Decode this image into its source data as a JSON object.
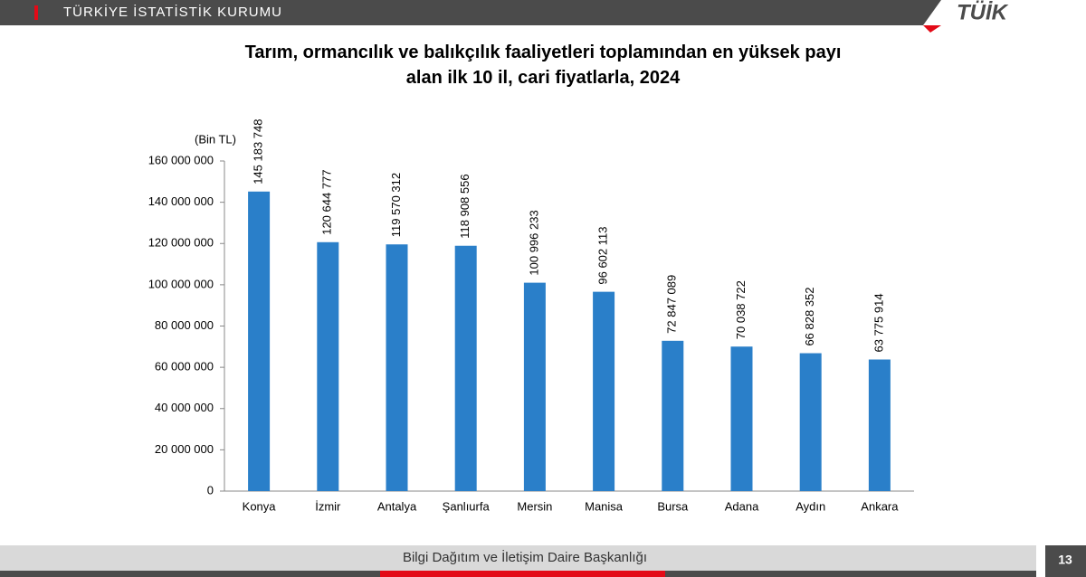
{
  "header": {
    "title": "TÜRKİYE İSTATİSTİK KURUMU",
    "logo": "TÜİK"
  },
  "footer": {
    "text": "Bilgi Dağıtım ve İletişim Daire Başkanlığı",
    "page": "13"
  },
  "chart_data": {
    "type": "bar",
    "title": "Tarım, ormancılık ve balıkçılık faaliyetleri toplamından en yüksek payı alan ilk 10 il, cari fiyatlarla, 2024",
    "y_label": "(Bin TL)",
    "categories": [
      "Konya",
      "İzmir",
      "Antalya",
      "Şanlıurfa",
      "Mersin",
      "Manisa",
      "Bursa",
      "Adana",
      "Aydın",
      "Ankara"
    ],
    "values": [
      145183748,
      120644777,
      119570312,
      118908556,
      100996233,
      96602113,
      72847089,
      70038722,
      66828352,
      63775914
    ],
    "value_labels": [
      "145 183 748",
      "120 644 777",
      "119 570 312",
      "118 908 556",
      "100 996 233",
      "96 602 113",
      "72 847 089",
      "70 038 722",
      "66 828 352",
      "63 775 914"
    ],
    "color": "#2a7fc9",
    "ylim": [
      0,
      160000000
    ],
    "yticks": [
      0,
      {
        "value": 20000000,
        "label": "20 000 000"
      },
      {
        "value": 40000000,
        "label": "40 000 000"
      },
      {
        "value": 60000000,
        "label": "60 000 000"
      },
      {
        "value": 80000000,
        "label": "80 000 000"
      },
      {
        "value": 100000000,
        "label": "100 000 000"
      },
      {
        "value": 120000000,
        "label": "120 000 000"
      },
      {
        "value": 140000000,
        "label": "140 000 000"
      },
      {
        "value": 160000000,
        "label": "160 000 000"
      }
    ],
    "grid": false
  }
}
